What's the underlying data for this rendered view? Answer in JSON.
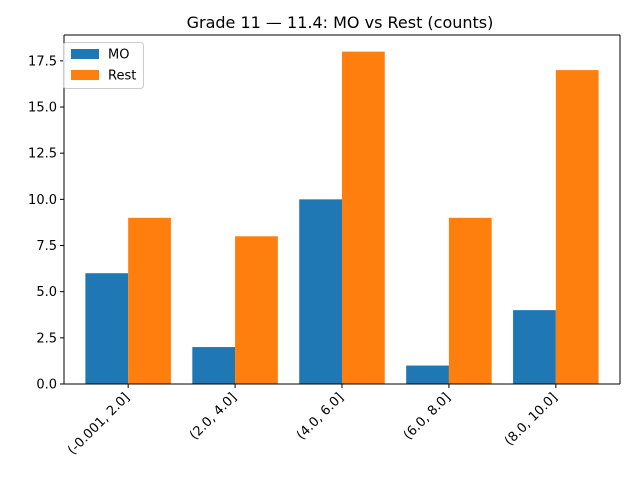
{
  "chart_data": {
    "type": "bar",
    "title": "Grade 11 — 11.4: MO vs Rest (counts)",
    "xlabel": "",
    "ylabel": "",
    "categories": [
      "(-0.001, 2.0]",
      "(2.0, 4.0]",
      "(4.0, 6.0]",
      "(6.0, 8.0]",
      "(8.0, 10.0]"
    ],
    "series": [
      {
        "name": "MO",
        "color": "#1f77b4",
        "values": [
          6,
          2,
          10,
          1,
          4
        ]
      },
      {
        "name": "Rest",
        "color": "#ff7f0e",
        "values": [
          9,
          8,
          18,
          9,
          17
        ]
      }
    ],
    "ylim": [
      0,
      18.9
    ],
    "yticks": [
      "0.0",
      "2.5",
      "5.0",
      "7.5",
      "10.0",
      "12.5",
      "15.0",
      "17.5"
    ],
    "grid": false,
    "legend": "top-left"
  }
}
